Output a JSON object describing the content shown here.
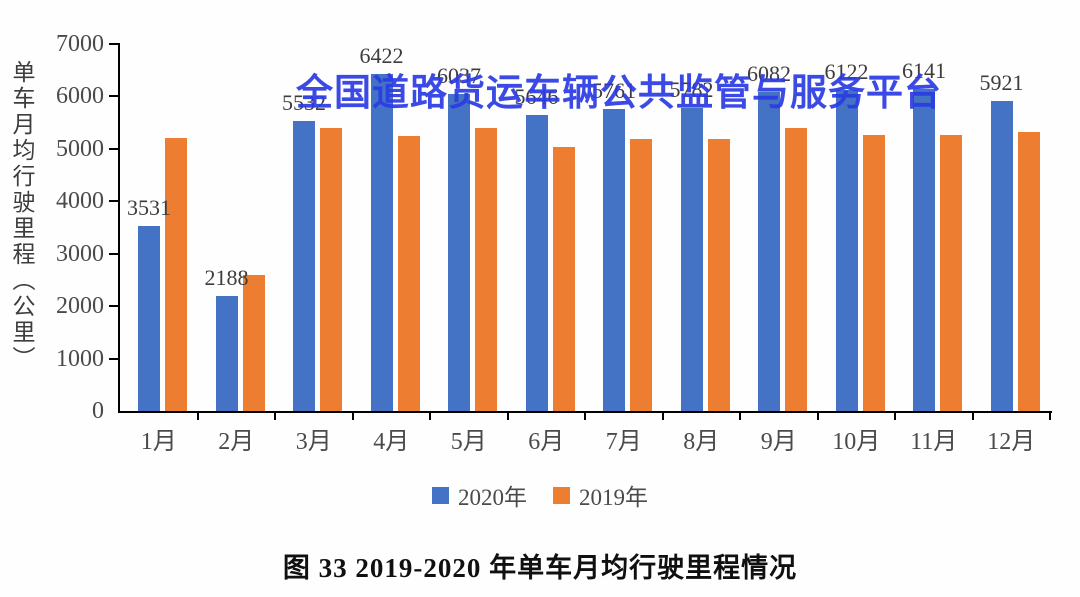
{
  "watermark": "全国道路货运车辆公共监管与服务平台",
  "caption": "图 33  2019-2020 年单车月均行驶里程情况",
  "colors": {
    "series_2020": "#4472C4",
    "series_2019": "#ED7D31",
    "watermark_blue": "#2B3BE3",
    "axis": "#000000",
    "tick_text": "#4a4a4a",
    "value_label_text": "#3d3d3d"
  },
  "chart_data": {
    "type": "bar",
    "title": "图 33  2019-2020 年单车月均行驶里程情况",
    "ylabel": "单车月均行驶里程（公里）",
    "xlabel": "",
    "categories": [
      "1月",
      "2月",
      "3月",
      "4月",
      "5月",
      "6月",
      "7月",
      "8月",
      "9月",
      "10月",
      "11月",
      "12月"
    ],
    "series": [
      {
        "name": "2020年",
        "color": "#4472C4",
        "data_labels": true,
        "values": [
          3531,
          2188,
          5532,
          6422,
          6037,
          5646,
          5761,
          5782,
          6082,
          6122,
          6141,
          5921
        ]
      },
      {
        "name": "2019年",
        "color": "#ED7D31",
        "data_labels": false,
        "values": [
          5200,
          2600,
          5400,
          5240,
          5390,
          5040,
          5190,
          5180,
          5400,
          5260,
          5270,
          5330
        ]
      }
    ],
    "ylim": [
      0,
      7000
    ],
    "ytick_step": 1000,
    "grid": false,
    "legend_position": "bottom"
  }
}
